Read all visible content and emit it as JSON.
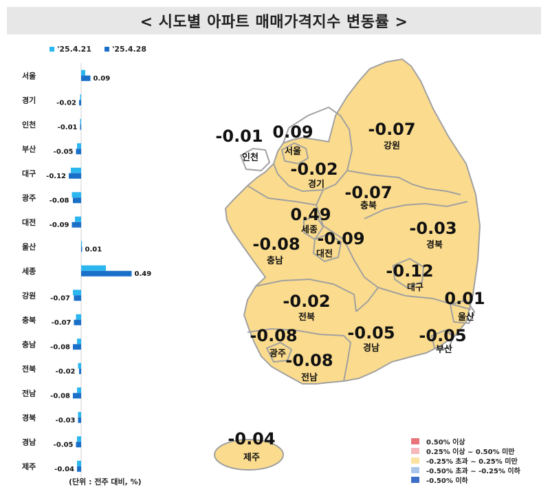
{
  "title": "< 시도별 아파트 매매가격지수 변동률 >",
  "unit_note": "(단위 : 전주 대비, %)",
  "colors": {
    "series_prev": "#2bb6f0",
    "series_curr": "#1a6fc8",
    "map_fill": "#fbdc8e",
    "map_stroke": "#a0a0a0",
    "legend": [
      "#e8737b",
      "#f4b8bd",
      "#fbe2a0",
      "#a9c5ea",
      "#3f6ec8"
    ]
  },
  "chart_data": {
    "type": "bar",
    "orientation": "horizontal",
    "categories": [
      "서울",
      "경기",
      "인천",
      "부산",
      "대구",
      "광주",
      "대전",
      "울산",
      "세종",
      "강원",
      "충북",
      "충남",
      "전북",
      "전남",
      "경북",
      "경남",
      "제주"
    ],
    "series": [
      {
        "name": "'25.4.21",
        "values": [
          0.04,
          -0.01,
          -0.01,
          -0.04,
          -0.1,
          -0.09,
          -0.06,
          0.0,
          0.24,
          -0.08,
          -0.05,
          -0.04,
          -0.03,
          -0.04,
          -0.03,
          -0.04,
          -0.04
        ]
      },
      {
        "name": "'25.4.28",
        "values": [
          0.09,
          -0.02,
          -0.01,
          -0.05,
          -0.12,
          -0.08,
          -0.09,
          0.01,
          0.49,
          -0.07,
          -0.07,
          -0.08,
          -0.02,
          -0.08,
          -0.03,
          -0.05,
          -0.04
        ]
      }
    ],
    "data_labels": [
      "0.09",
      "-0.02",
      "-0.01",
      "-0.05",
      "-0.12",
      "-0.08",
      "-0.09",
      "0.01",
      "0.49",
      "-0.07",
      "-0.07",
      "-0.08",
      "-0.02",
      "-0.08",
      "-0.03",
      "-0.05",
      "-0.04"
    ],
    "legend_position": "top-left",
    "grid": false
  },
  "map": {
    "regions": [
      {
        "name": "인천",
        "value": "-0.01"
      },
      {
        "name": "서울",
        "value": "0.09"
      },
      {
        "name": "강원",
        "value": "-0.07"
      },
      {
        "name": "경기",
        "value": "-0.02"
      },
      {
        "name": "충북",
        "value": "-0.07"
      },
      {
        "name": "세종",
        "value": "0.49"
      },
      {
        "name": "경북",
        "value": "-0.03"
      },
      {
        "name": "충남",
        "value": "-0.08"
      },
      {
        "name": "대전",
        "value": "-0.09"
      },
      {
        "name": "대구",
        "value": "-0.12"
      },
      {
        "name": "울산",
        "value": "0.01"
      },
      {
        "name": "전북",
        "value": "-0.02"
      },
      {
        "name": "광주",
        "value": "-0.08"
      },
      {
        "name": "경남",
        "value": "-0.05"
      },
      {
        "name": "부산",
        "value": "-0.05"
      },
      {
        "name": "전남",
        "value": "-0.08"
      },
      {
        "name": "제주",
        "value": "-0.04"
      }
    ],
    "legend": [
      "0.50% 이상",
      "0.25% 이상 ~ 0.50% 미만",
      "-0.25% 초과 ~ 0.25% 미만",
      "-0.50% 초과 ~ -0.25% 이하",
      "-0.50% 이하"
    ]
  }
}
